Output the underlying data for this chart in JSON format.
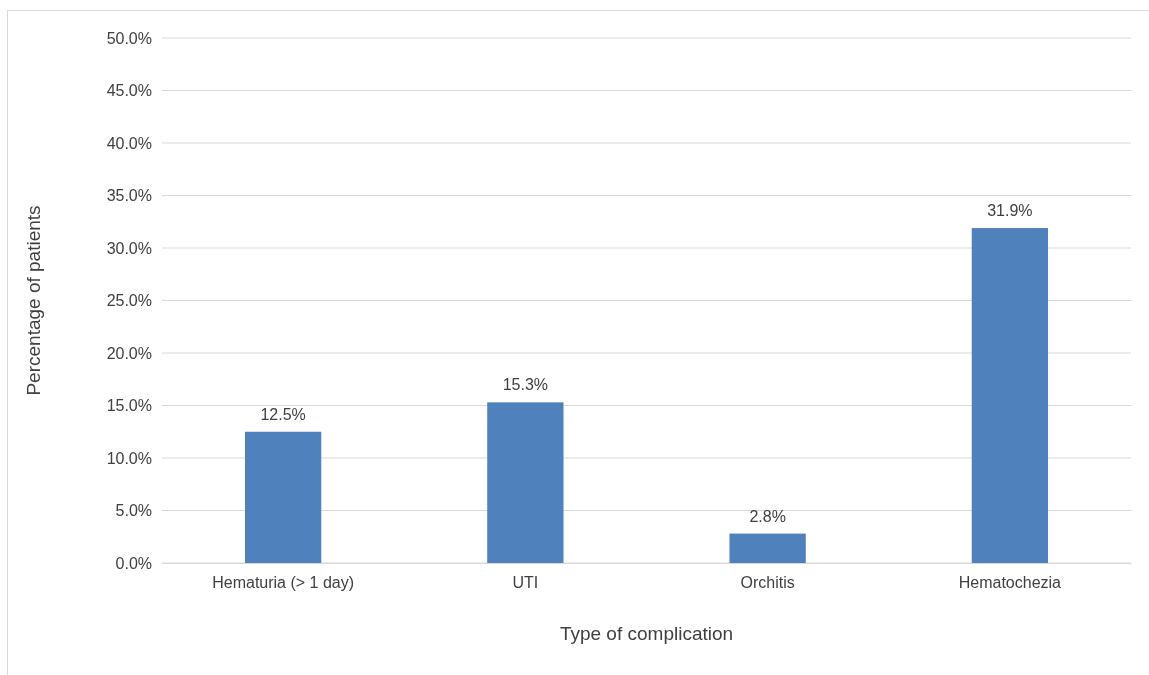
{
  "chart_data": {
    "type": "bar",
    "xlabel": "Type of complication",
    "ylabel": "Percentage of patients",
    "categories": [
      "Hematuria (> 1 day)",
      "UTI",
      "Orchitis",
      "Hematochezia"
    ],
    "values": [
      12.5,
      15.3,
      2.8,
      31.9
    ],
    "value_labels": [
      "12.5%",
      "15.3%",
      "2.8%",
      "31.9%"
    ],
    "color": "#4f81bd",
    "ylim": [
      0,
      50
    ],
    "yticks": [
      {
        "value": 0,
        "label": "0.0%"
      },
      {
        "value": 5,
        "label": "5.0%"
      },
      {
        "value": 10,
        "label": "10.0%"
      },
      {
        "value": 15,
        "label": "15.0%"
      },
      {
        "value": 20,
        "label": "20.0%"
      },
      {
        "value": 25,
        "label": "25.0%"
      },
      {
        "value": 30,
        "label": "30.0%"
      },
      {
        "value": 35,
        "label": "35.0%"
      },
      {
        "value": 40,
        "label": "40.0%"
      },
      {
        "value": 45,
        "label": "45.0%"
      },
      {
        "value": 50,
        "label": "50.0%"
      }
    ],
    "grid": "y"
  }
}
